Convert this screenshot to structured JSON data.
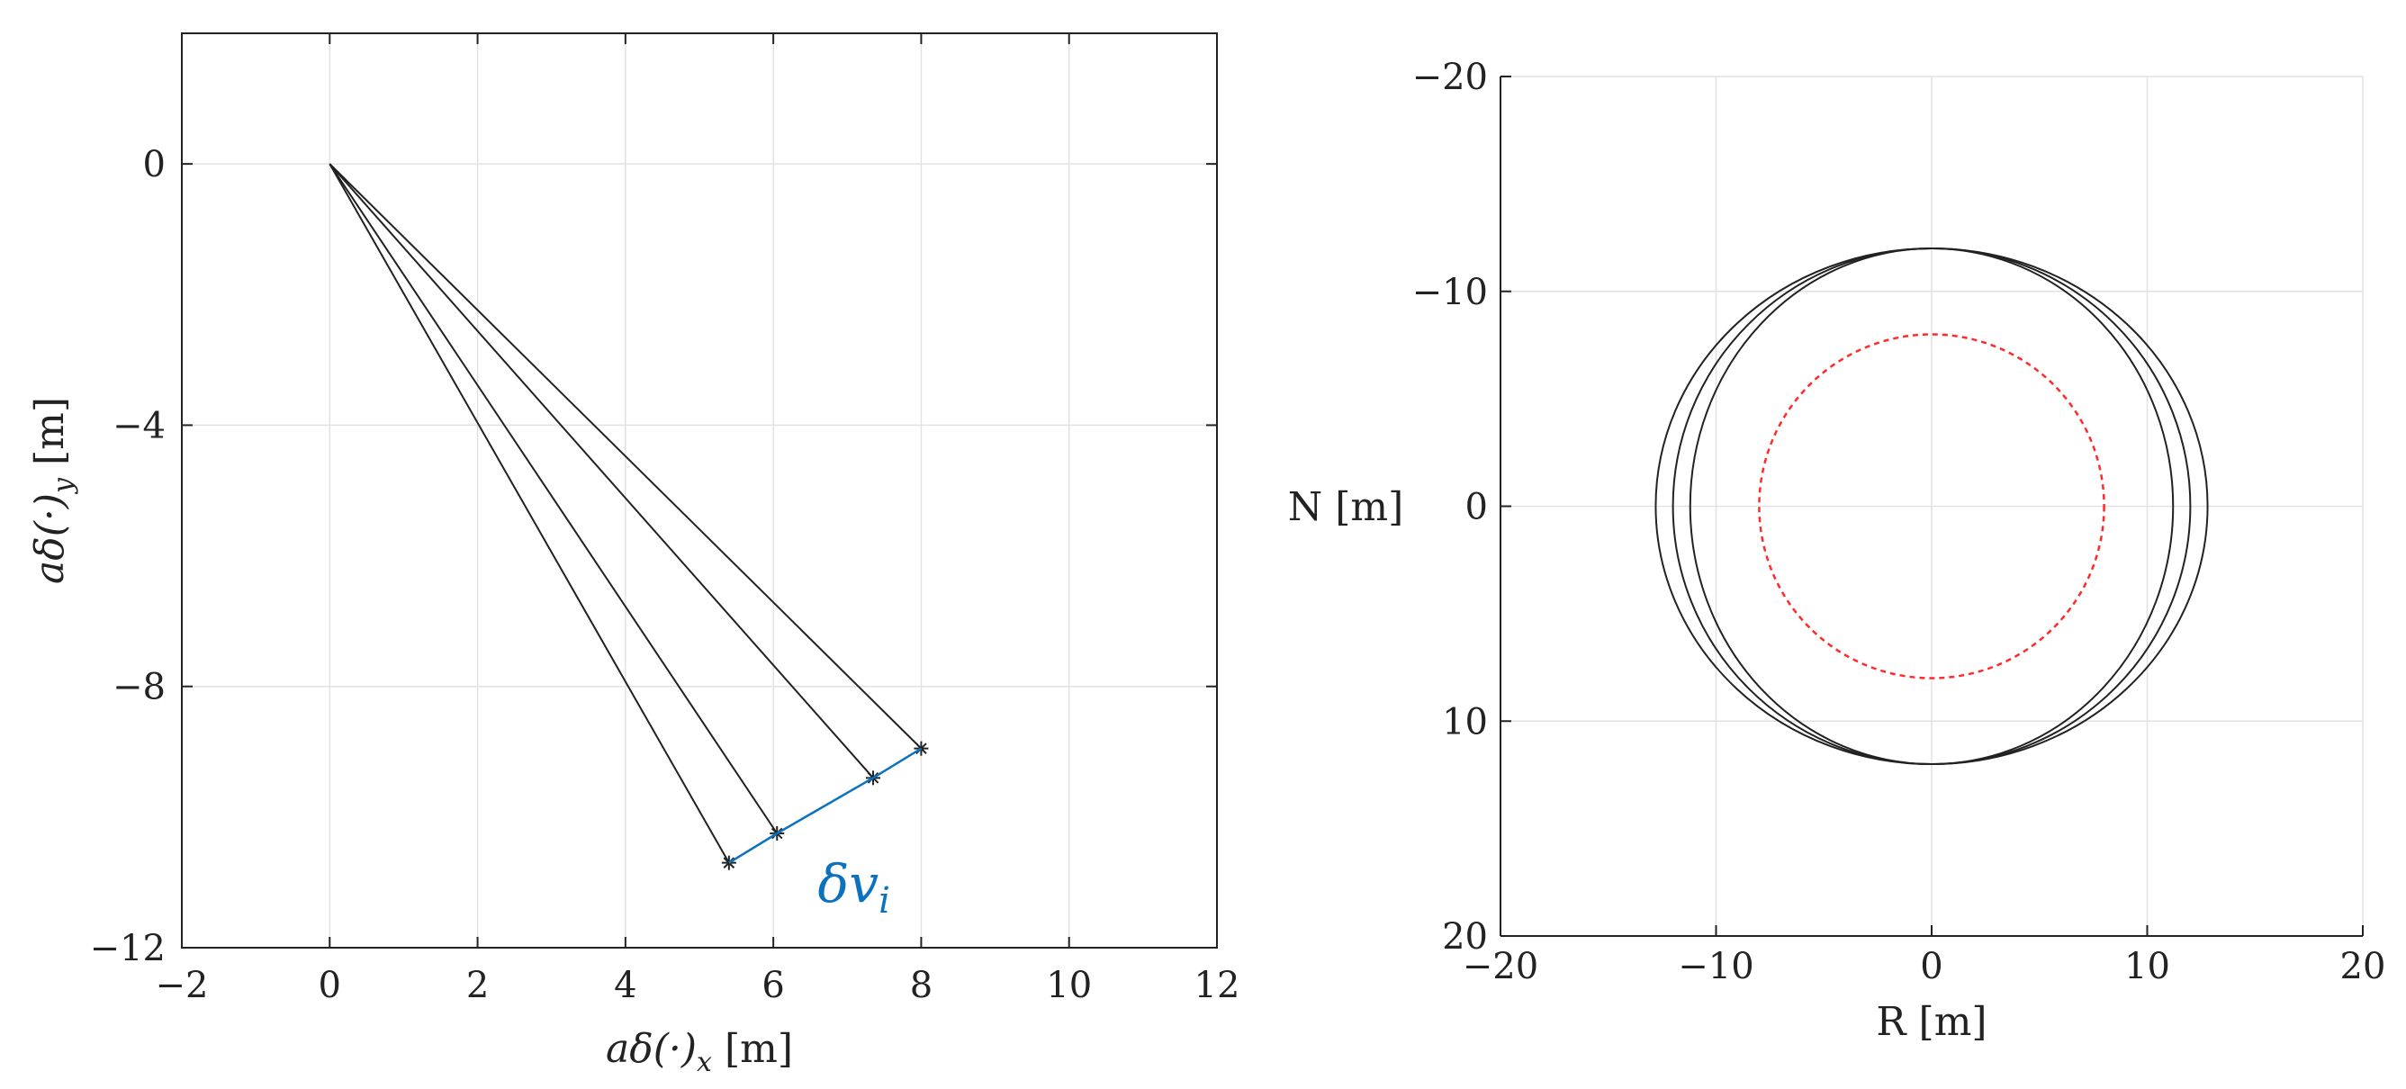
{
  "chart_data": [
    {
      "type": "line",
      "xlim": [
        -2,
        12
      ],
      "ylim": [
        -12,
        2
      ],
      "x_ticks": [
        -2,
        0,
        2,
        4,
        6,
        8,
        10,
        12
      ],
      "y_ticks": [
        0,
        -4,
        -8,
        -12
      ],
      "x_tick_labels": [
        "−2",
        "0",
        "2",
        "4",
        "6",
        "8",
        "10",
        "12"
      ],
      "y_tick_labels": [
        "0",
        "−4",
        "−8",
        "−12"
      ],
      "xlabel": "aδ(·)",
      "xlabel_sub": "x",
      "xlabel_unit": "[m]",
      "ylabel": "aδ(·)",
      "ylabel_sub": "y",
      "ylabel_unit": "[m]",
      "grid": true,
      "series": [
        {
          "x": [
            0,
            5.4
          ],
          "y": [
            0,
            -10.7
          ]
        },
        {
          "x": [
            0,
            6.05
          ],
          "y": [
            0,
            -10.25
          ]
        },
        {
          "x": [
            0,
            7.35
          ],
          "y": [
            0,
            -9.4
          ]
        },
        {
          "x": [
            0,
            8.0
          ],
          "y": [
            0,
            -8.95
          ]
        }
      ],
      "markers": {
        "symbol": "*",
        "x": [
          5.4,
          6.05,
          7.35,
          8.0
        ],
        "y": [
          -10.7,
          -10.25,
          -9.4,
          -8.95
        ]
      },
      "arrows": [
        {
          "from": [
            5.4,
            -10.7
          ],
          "to": [
            6.05,
            -10.25
          ]
        },
        {
          "from": [
            6.05,
            -10.25
          ],
          "to": [
            7.35,
            -9.4
          ]
        },
        {
          "from": [
            7.35,
            -9.4
          ],
          "to": [
            8.0,
            -8.95
          ]
        }
      ],
      "annotation": {
        "text": "δv",
        "sub": "i",
        "x": 6.6,
        "y": -11.3,
        "color": "#0b72bd"
      }
    },
    {
      "type": "line",
      "xlim": [
        -20,
        20
      ],
      "ylim": [
        -20,
        20
      ],
      "y_reversed": true,
      "x_ticks": [
        -20,
        -10,
        0,
        10,
        20
      ],
      "y_ticks": [
        -20,
        -10,
        0,
        10,
        20
      ],
      "x_tick_labels": [
        "−20",
        "−10",
        "0",
        "10",
        "20"
      ],
      "y_tick_labels": [
        "−20",
        "−10",
        "0",
        "10",
        "20"
      ],
      "xlabel": "R [m]",
      "ylabel": "N [m]",
      "grid": true,
      "ellipses": [
        {
          "cx": 0,
          "cy": 0,
          "rx": 11.2,
          "ry": 12.0,
          "color": "#222222",
          "dash": "solid"
        },
        {
          "cx": 0,
          "cy": 0,
          "rx": 12.0,
          "ry": 12.0,
          "color": "#222222",
          "dash": "solid"
        },
        {
          "cx": 0,
          "cy": 0,
          "rx": 12.8,
          "ry": 12.0,
          "color": "#222222",
          "dash": "solid"
        },
        {
          "cx": 0,
          "cy": 0,
          "rx": 8.0,
          "ry": 8.0,
          "color": "#ff2a2a",
          "dash": "dashed"
        }
      ]
    }
  ]
}
